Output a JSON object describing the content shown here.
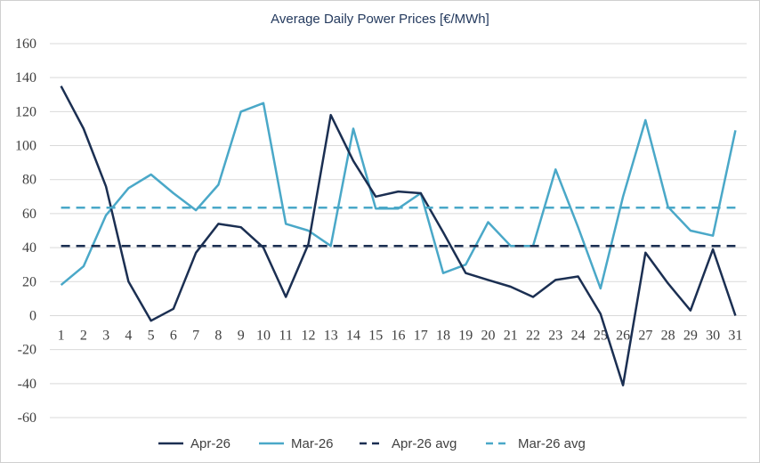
{
  "chart_data": {
    "type": "line",
    "title": "Average Daily Power Prices [€/MWh]",
    "xlabel": "",
    "ylabel": "",
    "ylim": [
      -60,
      160
    ],
    "yticks": [
      -60,
      -40,
      -20,
      0,
      20,
      40,
      60,
      80,
      100,
      120,
      140,
      160
    ],
    "x": [
      1,
      2,
      3,
      4,
      5,
      6,
      7,
      8,
      9,
      10,
      11,
      12,
      13,
      14,
      15,
      16,
      17,
      18,
      19,
      20,
      21,
      22,
      23,
      24,
      25,
      26,
      27,
      28,
      29,
      30,
      31
    ],
    "grid": true,
    "legend_position": "bottom",
    "series": [
      {
        "name": "Apr-26",
        "color": "#1b2f52",
        "style": "solid",
        "values": [
          135,
          110,
          76,
          20,
          -3,
          4,
          37,
          54,
          52,
          40,
          11,
          42,
          118,
          91,
          70,
          73,
          72,
          49,
          25,
          21,
          17,
          11,
          21,
          23,
          1,
          -41,
          37,
          19,
          3,
          39,
          0
        ]
      },
      {
        "name": "Mar-26",
        "color": "#4aa8c8",
        "style": "solid",
        "values": [
          18,
          29,
          59,
          75,
          83,
          72,
          62,
          77,
          120,
          125,
          54,
          50,
          41,
          110,
          63,
          63,
          72,
          25,
          30,
          55,
          41,
          41,
          86,
          52,
          16,
          70,
          115,
          64,
          50,
          47,
          109
        ]
      },
      {
        "name": "Apr-26 avg",
        "color": "#1b2f52",
        "style": "dashed",
        "values": [
          41,
          41,
          41,
          41,
          41,
          41,
          41,
          41,
          41,
          41,
          41,
          41,
          41,
          41,
          41,
          41,
          41,
          41,
          41,
          41,
          41,
          41,
          41,
          41,
          41,
          41,
          41,
          41,
          41,
          41,
          41
        ]
      },
      {
        "name": "Mar-26 avg",
        "color": "#4aa8c8",
        "style": "dashed",
        "values": [
          63.5,
          63.5,
          63.5,
          63.5,
          63.5,
          63.5,
          63.5,
          63.5,
          63.5,
          63.5,
          63.5,
          63.5,
          63.5,
          63.5,
          63.5,
          63.5,
          63.5,
          63.5,
          63.5,
          63.5,
          63.5,
          63.5,
          63.5,
          63.5,
          63.5,
          63.5,
          63.5,
          63.5,
          63.5,
          63.5,
          63.5
        ]
      }
    ]
  }
}
